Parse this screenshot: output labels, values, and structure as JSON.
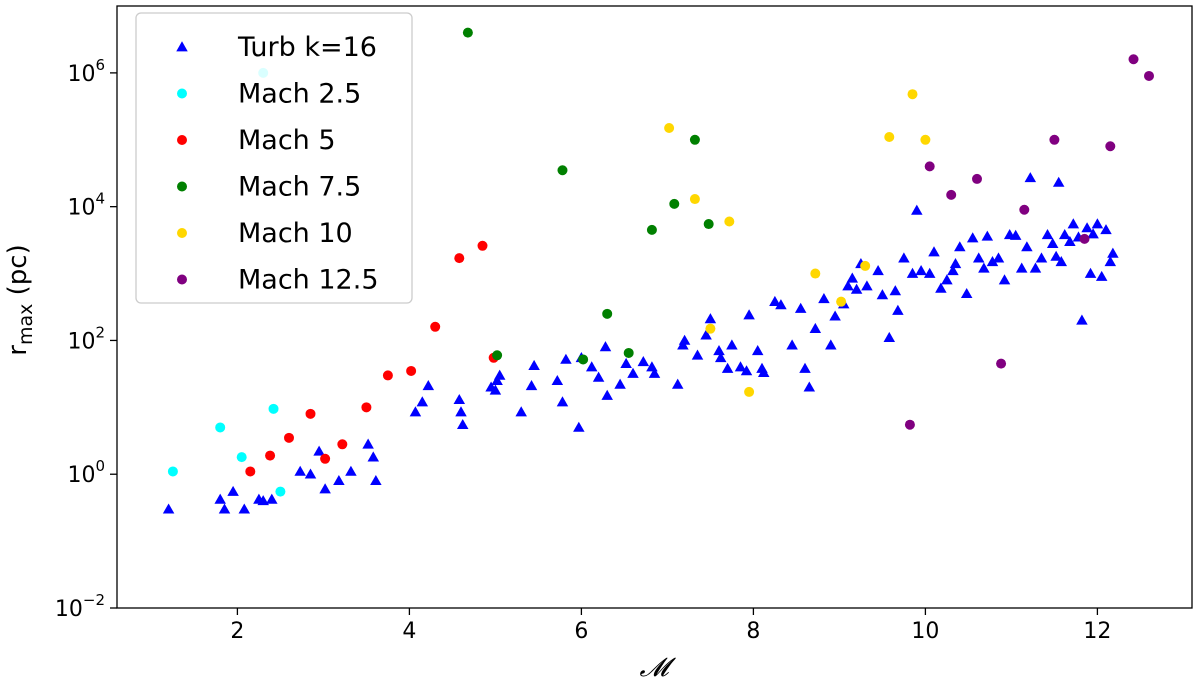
{
  "chart_data": {
    "type": "scatter",
    "title": "",
    "xlabel": "𝓜",
    "ylabel_main": "r",
    "ylabel_sub": "max",
    "ylabel_suffix": " (pc)",
    "xlim": [
      0.6,
      13.1
    ],
    "ylim": [
      0.01,
      10000000
    ],
    "yscale": "log",
    "x_ticks": [
      2,
      4,
      6,
      8,
      10,
      12
    ],
    "x_tick_labels": [
      "2",
      "4",
      "6",
      "8",
      "10",
      "12"
    ],
    "y_ticks": [
      0.01,
      1,
      100,
      10000,
      1000000
    ],
    "y_tick_base": [
      "10",
      "10",
      "10",
      "10",
      "10"
    ],
    "y_tick_exp": [
      "−2",
      "0",
      "2",
      "4",
      "6"
    ],
    "grid": false,
    "legend_position": "top-left",
    "series": [
      {
        "name": "Turb k=16",
        "marker": "triangle",
        "color": "#0000ff",
        "x": [
          1.2,
          1.8,
          1.85,
          1.95,
          2.08,
          2.25,
          2.3,
          2.4,
          2.73,
          2.85,
          2.95,
          3.02,
          3.18,
          3.32,
          3.52,
          3.58,
          3.61,
          4.07,
          4.15,
          4.22,
          4.58,
          4.6,
          4.62,
          4.95,
          5.0,
          5.02,
          5.05,
          5.3,
          5.42,
          5.45,
          5.72,
          5.78,
          5.82,
          5.97,
          6.0,
          6.12,
          6.2,
          6.28,
          6.3,
          6.45,
          6.52,
          6.6,
          6.72,
          6.82,
          6.85,
          7.12,
          7.18,
          7.2,
          7.35,
          7.45,
          7.5,
          7.6,
          7.62,
          7.7,
          7.75,
          7.85,
          7.92,
          7.95,
          8.05,
          8.1,
          8.12,
          8.25,
          8.32,
          8.45,
          8.55,
          8.6,
          8.65,
          8.72,
          8.82,
          8.9,
          8.95,
          9.05,
          9.1,
          9.15,
          9.2,
          9.25,
          9.32,
          9.45,
          9.5,
          9.58,
          9.65,
          9.68,
          9.75,
          9.85,
          9.9,
          9.95,
          10.05,
          10.1,
          10.18,
          10.25,
          10.32,
          10.35,
          10.4,
          10.48,
          10.55,
          10.62,
          10.68,
          10.72,
          10.78,
          10.85,
          10.92,
          10.98,
          11.05,
          11.12,
          11.18,
          11.22,
          11.28,
          11.35,
          11.42,
          11.48,
          11.52,
          11.55,
          11.58,
          11.62,
          11.68,
          11.72,
          11.78,
          11.82,
          11.88,
          11.92,
          11.95,
          12.0,
          12.05,
          12.1,
          12.15,
          12.18
        ],
        "y": [
          0.3,
          0.42,
          0.3,
          0.55,
          0.3,
          0.42,
          0.4,
          0.42,
          1.1,
          1.0,
          2.2,
          0.6,
          0.8,
          1.1,
          2.8,
          1.8,
          0.8,
          8.5,
          12,
          21,
          13,
          8.5,
          5.5,
          20,
          18,
          25,
          30,
          8.5,
          21,
          42,
          25,
          12,
          52,
          5,
          55,
          40,
          28,
          80,
          15,
          22,
          45,
          32,
          48,
          40,
          32,
          22,
          85,
          100,
          60,
          120,
          210,
          70,
          55,
          38,
          85,
          40,
          35,
          240,
          70,
          38,
          33,
          380,
          340,
          85,
          300,
          38,
          20,
          150,
          420,
          85,
          230,
          350,
          650,
          850,
          580,
          1400,
          650,
          1100,
          480,
          110,
          550,
          280,
          1700,
          1000,
          8800,
          1100,
          1000,
          2100,
          600,
          800,
          1100,
          1400,
          2500,
          500,
          3400,
          1700,
          1200,
          3600,
          1500,
          1700,
          800,
          3800,
          3700,
          1200,
          2500,
          27000,
          1200,
          1700,
          3800,
          2800,
          1800,
          23000,
          1500,
          3800,
          3000,
          5500,
          3500,
          200,
          4800,
          1000,
          3900,
          5500,
          900,
          4500,
          1500,
          2000
        ]
      },
      {
        "name": "Mach 2.5",
        "marker": "circle",
        "color": "#00ffff",
        "x": [
          1.25,
          1.8,
          2.05,
          2.3,
          2.42,
          2.5
        ],
        "y": [
          1.1,
          5,
          1.8,
          1000000,
          9.5,
          0.55
        ]
      },
      {
        "name": "Mach 5",
        "marker": "circle",
        "color": "#ff0000",
        "x": [
          2.15,
          2.38,
          2.6,
          2.85,
          3.02,
          3.22,
          3.5,
          3.75,
          4.02,
          4.3,
          4.58,
          4.85,
          4.98
        ],
        "y": [
          1.1,
          1.9,
          3.5,
          8,
          1.7,
          2.8,
          10,
          30,
          35,
          160,
          1700,
          2600,
          55
        ]
      },
      {
        "name": "Mach 7.5",
        "marker": "circle",
        "color": "#008000",
        "x": [
          4.68,
          5.02,
          5.78,
          6.02,
          6.3,
          6.55,
          6.82,
          7.08,
          7.32,
          7.48
        ],
        "y": [
          4000000,
          60,
          35000,
          52,
          250,
          65,
          4500,
          11000,
          100000,
          5500
        ]
      },
      {
        "name": "Mach 10",
        "marker": "circle",
        "color": "#ffd700",
        "x": [
          7.02,
          7.32,
          7.5,
          7.72,
          7.95,
          8.72,
          9.02,
          9.3,
          9.58,
          9.85,
          10.0
        ],
        "y": [
          150000,
          13000,
          150,
          6000,
          17,
          1000,
          380,
          1300,
          110000,
          480000,
          100000
        ]
      },
      {
        "name": "Mach 12.5",
        "marker": "circle",
        "color": "#800080",
        "x": [
          9.82,
          10.05,
          10.3,
          10.6,
          10.88,
          11.15,
          11.5,
          11.85,
          12.15,
          12.42,
          12.6
        ],
        "y": [
          5.5,
          40000,
          15000,
          26000,
          45,
          9000,
          100000,
          3300,
          80000,
          1600000,
          900000
        ]
      }
    ]
  }
}
